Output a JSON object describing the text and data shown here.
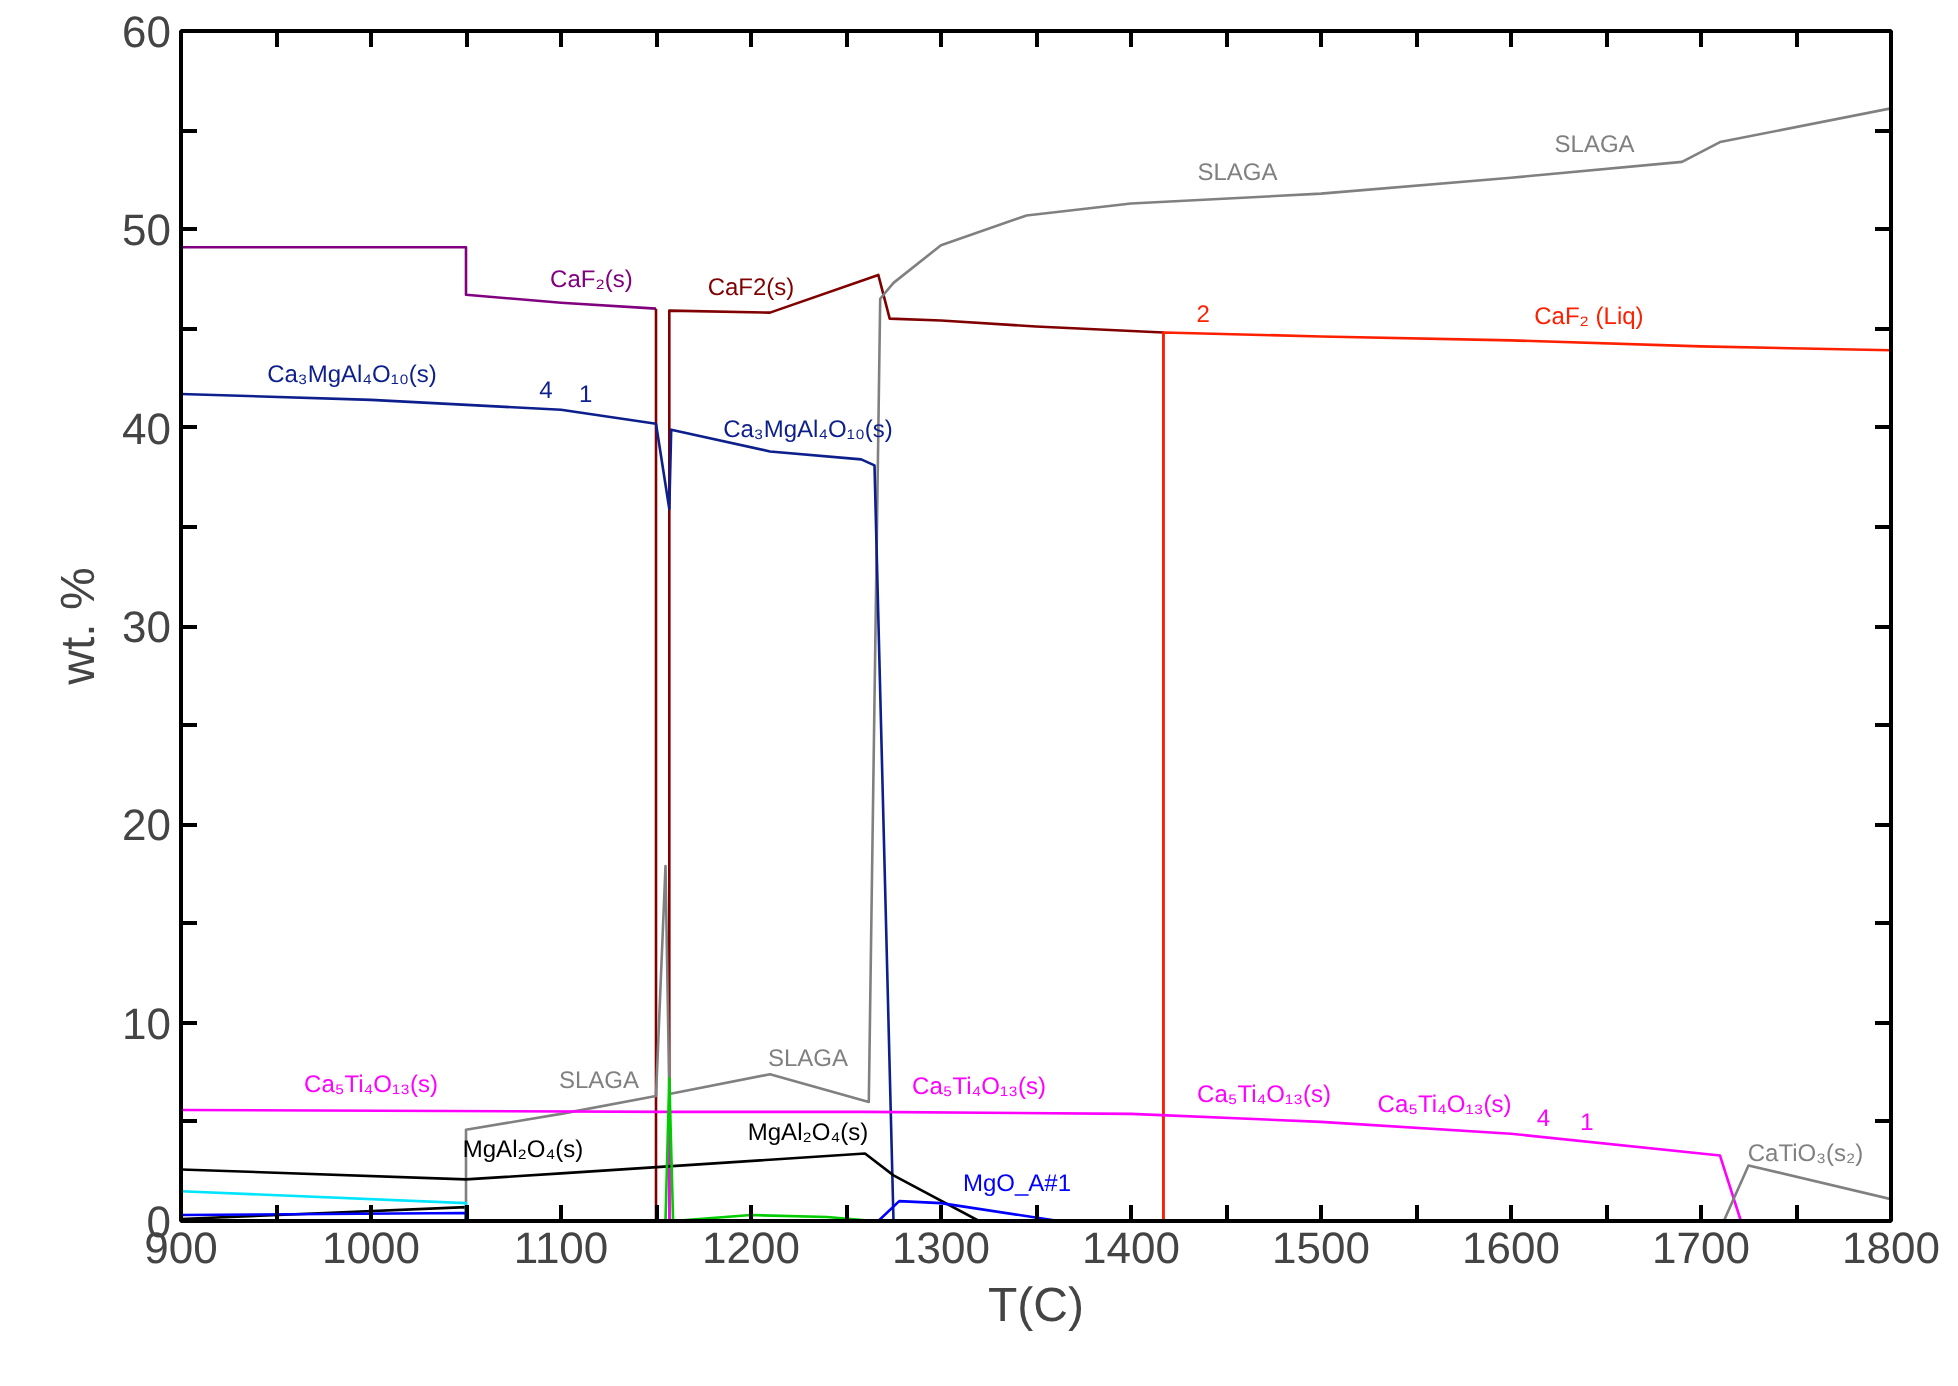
{
  "chart_data": {
    "type": "line",
    "xlabel": "T(C)",
    "ylabel": "wt. %",
    "xlim": [
      900,
      1800
    ],
    "ylim": [
      0,
      60
    ],
    "xticks": [
      900,
      {
        "value": 950,
        "label": null
      },
      1000,
      {
        "value": 1050,
        "label": null
      },
      1100,
      {
        "value": 1150,
        "label": null
      },
      1200,
      {
        "value": 1250,
        "label": null
      },
      1300,
      {
        "value": 1350,
        "label": null
      },
      1400,
      {
        "value": 1450,
        "label": null
      },
      1500,
      {
        "value": 1550,
        "label": null
      },
      1600,
      {
        "value": 1650,
        "label": null
      },
      1700,
      {
        "value": 1750,
        "label": null
      },
      1800
    ],
    "yticks": [
      0,
      {
        "value": 5,
        "label": null
      },
      10,
      {
        "value": 15,
        "label": null
      },
      20,
      {
        "value": 25,
        "label": null
      },
      30,
      {
        "value": 35,
        "label": null
      },
      40,
      {
        "value": 45,
        "label": null
      },
      50,
      {
        "value": 55,
        "label": null
      },
      60
    ],
    "grid": false,
    "marker": "none",
    "line_style": "solid",
    "series": [
      {
        "color": "#800080",
        "x": [
          900,
          1050,
          1050,
          1100,
          1150
        ],
        "values": [
          49.1,
          49.1,
          46.7,
          46.3,
          46.0
        ]
      },
      {
        "color": "#800000",
        "x": [
          1150,
          1150,
          1157,
          1157,
          1210,
          1267,
          1273,
          1300,
          1350,
          1417,
          1417
        ],
        "values": [
          46.0,
          0,
          0,
          45.9,
          45.8,
          47.7,
          45.5,
          45.4,
          45.1,
          44.8,
          0
        ]
      },
      {
        "color": "#ff2000",
        "x": [
          1417,
          1417,
          1500,
          1600,
          1700,
          1800
        ],
        "values": [
          0,
          44.8,
          44.6,
          44.4,
          44.1,
          43.9
        ]
      },
      {
        "color": "#808080",
        "x": [
          1050,
          1050,
          1100,
          1150,
          1155,
          1157,
          1210,
          1262,
          1268,
          1275,
          1300,
          1345,
          1400,
          1500,
          1600,
          1690,
          1710,
          1800
        ],
        "values": [
          0,
          4.6,
          5.4,
          6.3,
          17.9,
          6.4,
          7.4,
          6.0,
          46.5,
          47.3,
          49.2,
          50.7,
          51.3,
          51.8,
          52.6,
          53.4,
          54.4,
          56.1
        ]
      },
      {
        "color": "#0d1f8c",
        "x": [
          900,
          1000,
          1100,
          1150,
          1157,
          1158,
          1210,
          1258,
          1265,
          1275
        ],
        "values": [
          41.7,
          41.4,
          40.9,
          40.2,
          35.9,
          39.9,
          38.8,
          38.4,
          38.1,
          0
        ]
      },
      {
        "color": "#ff00ff",
        "x": [
          900,
          1157,
          1157,
          1157,
          1260,
          1400,
          1500,
          1600,
          1710,
          1721
        ],
        "values": [
          5.6,
          5.5,
          0,
          5.5,
          5.5,
          5.4,
          5.0,
          4.4,
          3.3,
          0
        ]
      },
      {
        "color": "#000000",
        "x": [
          900,
          1050,
          1100,
          1260,
          1275,
          1320
        ],
        "values": [
          2.6,
          2.1,
          2.4,
          3.4,
          2.3,
          0
        ]
      },
      {
        "color": "#000000",
        "x": [
          900,
          1050,
          1050
        ],
        "values": [
          0.1,
          0.7,
          0
        ]
      },
      {
        "color": "#00e5ff",
        "x": [
          900,
          1050,
          1050
        ],
        "values": [
          1.5,
          0.9,
          0
        ]
      },
      {
        "color": "#0000ff",
        "x": [
          900,
          1050,
          1050,
          1267,
          1278,
          1300,
          1362
        ],
        "values": [
          0.3,
          0.4,
          0,
          0,
          1.0,
          0.9,
          0
        ]
      },
      {
        "color": "#00cc00",
        "x": [
          1155,
          1157,
          1159,
          1200,
          1240,
          1265
        ],
        "values": [
          0,
          7.2,
          0,
          0.3,
          0.2,
          0
        ]
      },
      {
        "color": "#808080",
        "x": [
          1712,
          1725,
          1800
        ],
        "values": [
          0,
          2.8,
          1.1
        ]
      }
    ],
    "annotations": [
      {
        "text": "CaF₂(s)",
        "x": 1116,
        "y": 46.2
      },
      {
        "text": "CaF2(s)",
        "x": 1200,
        "y": 45.8
      },
      {
        "text": "SLAGA",
        "x": 1456,
        "y": 51.6
      },
      {
        "text": "SLAGA",
        "x": 1644,
        "y": 53.0
      },
      {
        "text": "CaF₂ (Liq)",
        "x": 1641,
        "y": 44.3
      },
      {
        "text": "Ca₃MgAl₄O₁₀(s)",
        "x": 990,
        "y": 41.4
      },
      {
        "text": "Ca₃MgAl₄O₁₀(s)",
        "x": 1230,
        "y": 38.6
      },
      {
        "text": "4",
        "x": 1092,
        "y": 40.9
      },
      {
        "text": "1",
        "x": 1113,
        "y": 40.7
      },
      {
        "text": "2",
        "x": 1438,
        "y": 44.7
      },
      {
        "text": "Ca₅Ti₄O₁₃(s)",
        "x": 1565,
        "y": 4.6
      },
      {
        "text": "Ca₅Ti₄O₁₃(s)",
        "x": 1000,
        "y": 5.6
      },
      {
        "text": "SLAGA",
        "x": 1120,
        "y": 5.8
      },
      {
        "text": "Ca₅Ti₄O₁₃(s)",
        "x": 1320,
        "y": 5.5
      },
      {
        "text": "SLAGA",
        "x": 1230,
        "y": 6.9
      },
      {
        "text": "Ca₅Ti₄O₁₃(s)",
        "x": 1470,
        "y": 5.1
      },
      {
        "text": "4",
        "x": 1617,
        "y": 4.2
      },
      {
        "text": "1",
        "x": 1640,
        "y": 4.0
      },
      {
        "text": "CaTiO₃(s₂)",
        "x": 1755,
        "y": 2.1
      },
      {
        "text": "MgAl₂O₄(s)",
        "x": 1080,
        "y": 2.3
      },
      {
        "text": "MgAl₂O₄(s)",
        "x": 1230,
        "y": 3.2
      },
      {
        "text": "MgO_A#1",
        "x": 1340,
        "y": 0.6
      }
    ]
  }
}
